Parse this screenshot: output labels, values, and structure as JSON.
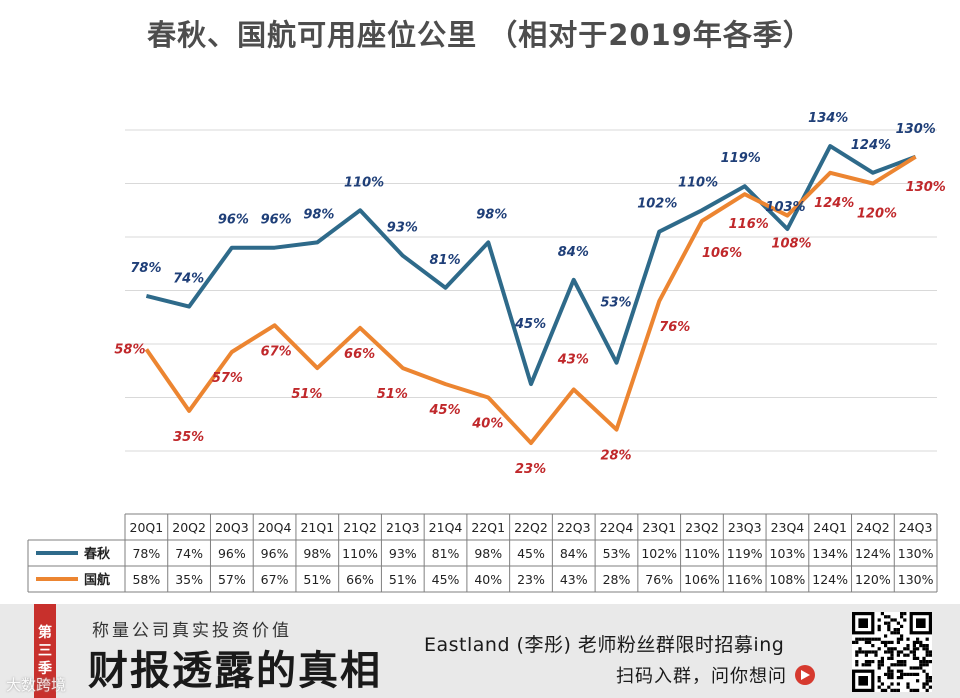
{
  "title": "春秋、国航可用座位公里 （相对于2019年各季）",
  "chart_data": {
    "type": "line",
    "title": "春秋、国航可用座位公里 （相对于2019年各季）",
    "categories": [
      "20Q1",
      "20Q2",
      "20Q3",
      "20Q4",
      "21Q1",
      "21Q2",
      "21Q3",
      "21Q4",
      "22Q1",
      "22Q2",
      "22Q3",
      "22Q4",
      "23Q1",
      "23Q2",
      "23Q3",
      "23Q4",
      "24Q1",
      "24Q2",
      "24Q3"
    ],
    "series": [
      {
        "name": "春秋",
        "color": "#2e6a8a",
        "label_color": "#1f3f78",
        "values": [
          78,
          74,
          96,
          96,
          98,
          110,
          93,
          81,
          98,
          45,
          84,
          53,
          102,
          110,
          119,
          103,
          134,
          124,
          130
        ],
        "labels": [
          "78%",
          "74%",
          "96%",
          "96%",
          "98%",
          "110%",
          "93%",
          "81%",
          "98%",
          "45%",
          "84%",
          "53%",
          "102%",
          "110%",
          "119%",
          "103%",
          "134%",
          "124%",
          "130%"
        ]
      },
      {
        "name": "国航",
        "color": "#ec8531",
        "label_color": "#c0282b",
        "values": [
          58,
          35,
          57,
          67,
          51,
          66,
          51,
          45,
          40,
          23,
          43,
          28,
          76,
          106,
          116,
          108,
          124,
          120,
          130
        ],
        "labels": [
          "58%",
          "35%",
          "57%",
          "67%",
          "51%",
          "66%",
          "51%",
          "45%",
          "40%",
          "23%",
          "43%",
          "28%",
          "76%",
          "106%",
          "116%",
          "108%",
          "124%",
          "120%",
          "130%"
        ]
      }
    ],
    "ylim": [
      10,
      150
    ],
    "gridlines": [
      20,
      40,
      60,
      80,
      100,
      120,
      140
    ],
    "grid": true,
    "xlabel": "",
    "ylabel": "",
    "legend": "data table below chart"
  },
  "banner": {
    "season": [
      "第",
      "三",
      "季"
    ],
    "slogan": "称量公司真实投资价值",
    "headline": "财报透露的真相",
    "recruit": "Eastland (李彤) 老师粉丝群限时招募ing",
    "scan": "扫码入群，问你想问",
    "watermark": "大数跨境"
  }
}
